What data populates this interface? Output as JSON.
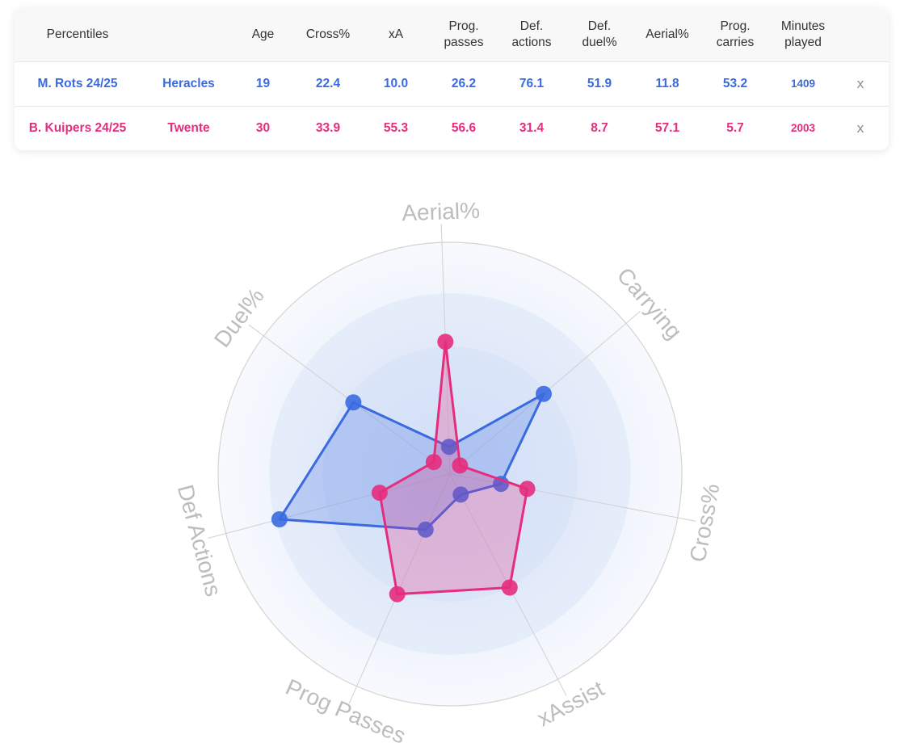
{
  "table": {
    "headers": [
      {
        "line1": "Percentiles",
        "line2": ""
      },
      {
        "line1": "",
        "line2": ""
      },
      {
        "line1": "Age",
        "line2": ""
      },
      {
        "line1": "Cross%",
        "line2": ""
      },
      {
        "line1": "xA",
        "line2": ""
      },
      {
        "line1": "Prog.",
        "line2": "passes"
      },
      {
        "line1": "Def.",
        "line2": "actions"
      },
      {
        "line1": "Def.",
        "line2": "duel%"
      },
      {
        "line1": "Aerial%",
        "line2": ""
      },
      {
        "line1": "Prog.",
        "line2": "carries"
      },
      {
        "line1": "Minutes",
        "line2": "played"
      },
      {
        "line1": "",
        "line2": ""
      }
    ],
    "rows": [
      {
        "player": "M. Rots 24/25",
        "team": "Heracles",
        "age": "19",
        "cross": "22.4",
        "xa": "10.0",
        "prog_passes": "26.2",
        "def_actions": "76.1",
        "def_duel": "51.9",
        "aerial": "11.8",
        "prog_carries": "53.2",
        "minutes": "1409",
        "remove": "x",
        "color": "#3a6ae0"
      },
      {
        "player": "B. Kuipers 24/25",
        "team": "Twente",
        "age": "30",
        "cross": "33.9",
        "xa": "55.3",
        "prog_passes": "56.6",
        "def_actions": "31.4",
        "def_duel": "8.7",
        "aerial": "57.1",
        "prog_carries": "5.7",
        "minutes": "2003",
        "remove": "x",
        "color": "#e62c7d"
      }
    ]
  },
  "chart_data": {
    "type": "radar",
    "axes": [
      "Aerial%",
      "Carrying",
      "Cross%",
      "xAssist",
      "Prog Passes",
      "Def Actions",
      "Duel%"
    ],
    "range": [
      0,
      100
    ],
    "grid": true,
    "series": [
      {
        "name": "M. Rots 24/25",
        "color": "#3a6ae0",
        "values": [
          11.8,
          53.2,
          22.4,
          10.0,
          26.2,
          76.1,
          51.9
        ]
      },
      {
        "name": "B. Kuipers 24/25",
        "color": "#e62c7d",
        "values": [
          57.1,
          5.7,
          33.9,
          55.3,
          56.6,
          31.4,
          8.7
        ]
      }
    ]
  }
}
